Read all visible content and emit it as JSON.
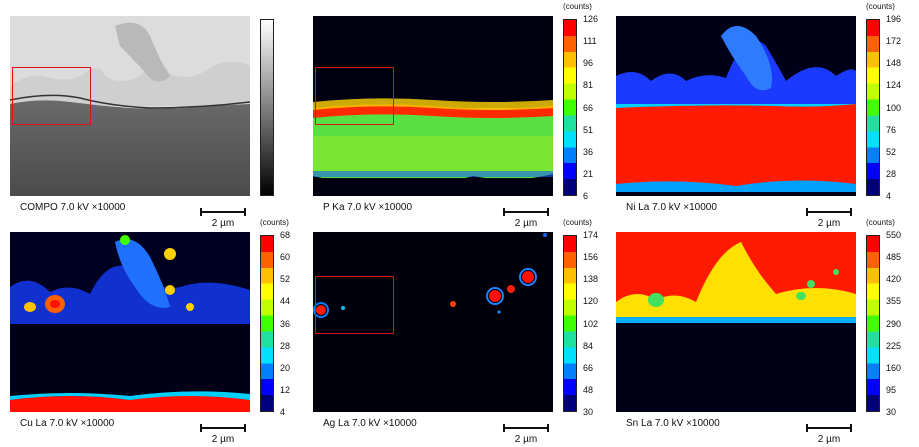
{
  "panels": [
    {
      "label": "COMPO 7.0 kV ×10000",
      "scale": "2 µm",
      "unit": "",
      "ticks": [],
      "colormap": "gray",
      "pattern": "compo"
    },
    {
      "label": "P Ka 7.0 kV ×10000",
      "scale": "2 µm",
      "unit": "(counts)",
      "ticks": [
        "126",
        "111",
        "96",
        "81",
        "66",
        "51",
        "36",
        "21",
        "6"
      ],
      "colormap": "jet",
      "pattern": "p"
    },
    {
      "label": "Ni La 7.0 kV ×10000",
      "scale": "2 µm",
      "unit": "(counts)",
      "ticks": [
        "196",
        "172",
        "148",
        "124",
        "100",
        "76",
        "52",
        "28",
        "4"
      ],
      "colormap": "jet",
      "pattern": "ni"
    },
    {
      "label": "Cu La 7.0 kV ×10000",
      "scale": "2 µm",
      "unit": "(counts)",
      "ticks": [
        "68",
        "60",
        "52",
        "44",
        "36",
        "28",
        "20",
        "12",
        "4"
      ],
      "colormap": "jet",
      "pattern": "cu"
    },
    {
      "label": "Ag La 7.0 kV ×10000",
      "scale": "2 µm",
      "unit": "(counts)",
      "ticks": [
        "174",
        "156",
        "138",
        "120",
        "102",
        "84",
        "66",
        "48",
        "30"
      ],
      "colormap": "jet",
      "pattern": "ag"
    },
    {
      "label": "Sn La 7.0 kV ×10000",
      "scale": "2 µm",
      "unit": "(counts)",
      "ticks": [
        "550",
        "485",
        "420",
        "355",
        "290",
        "225",
        "160",
        "95",
        "30"
      ],
      "colormap": "jet",
      "pattern": "sn"
    }
  ],
  "colors": {
    "roi": "#dd1111",
    "jet": [
      "#00007a",
      "#0000ff",
      "#0080ff",
      "#00e0ff",
      "#20e0a0",
      "#40ff00",
      "#c0ff00",
      "#ffff00",
      "#ffc000",
      "#ff6000",
      "#ff0000"
    ]
  }
}
